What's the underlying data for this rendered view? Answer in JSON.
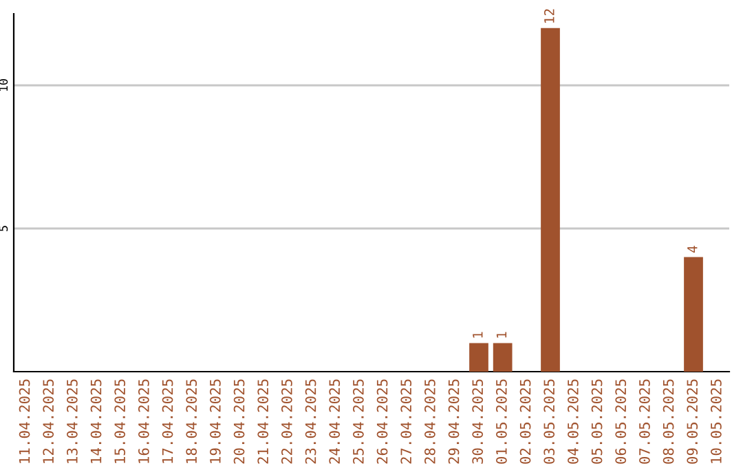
{
  "chart_data": {
    "type": "bar",
    "categories": [
      "11.04.2025",
      "12.04.2025",
      "13.04.2025",
      "14.04.2025",
      "15.04.2025",
      "16.04.2025",
      "17.04.2025",
      "18.04.2025",
      "19.04.2025",
      "20.04.2025",
      "21.04.2025",
      "22.04.2025",
      "23.04.2025",
      "24.04.2025",
      "25.04.2025",
      "26.04.2025",
      "27.04.2025",
      "28.04.2025",
      "29.04.2025",
      "30.04.2025",
      "01.05.2025",
      "02.05.2025",
      "03.05.2025",
      "04.05.2025",
      "05.05.2025",
      "06.05.2025",
      "07.05.2025",
      "08.05.2025",
      "09.05.2025",
      "10.05.2025"
    ],
    "values": [
      0,
      0,
      0,
      0,
      0,
      0,
      0,
      0,
      0,
      0,
      0,
      0,
      0,
      0,
      0,
      0,
      0,
      0,
      0,
      1,
      1,
      0,
      12,
      0,
      0,
      0,
      0,
      0,
      4,
      0
    ],
    "value_labels": [
      null,
      null,
      null,
      null,
      null,
      null,
      null,
      null,
      null,
      null,
      null,
      null,
      null,
      null,
      null,
      null,
      null,
      null,
      null,
      "1",
      "1",
      null,
      "12",
      null,
      null,
      null,
      null,
      null,
      "4",
      null
    ],
    "color": "#a0522d",
    "ylim": [
      0,
      12.5
    ],
    "yticks": [
      5,
      10
    ],
    "grid": "y",
    "legend": false
  }
}
